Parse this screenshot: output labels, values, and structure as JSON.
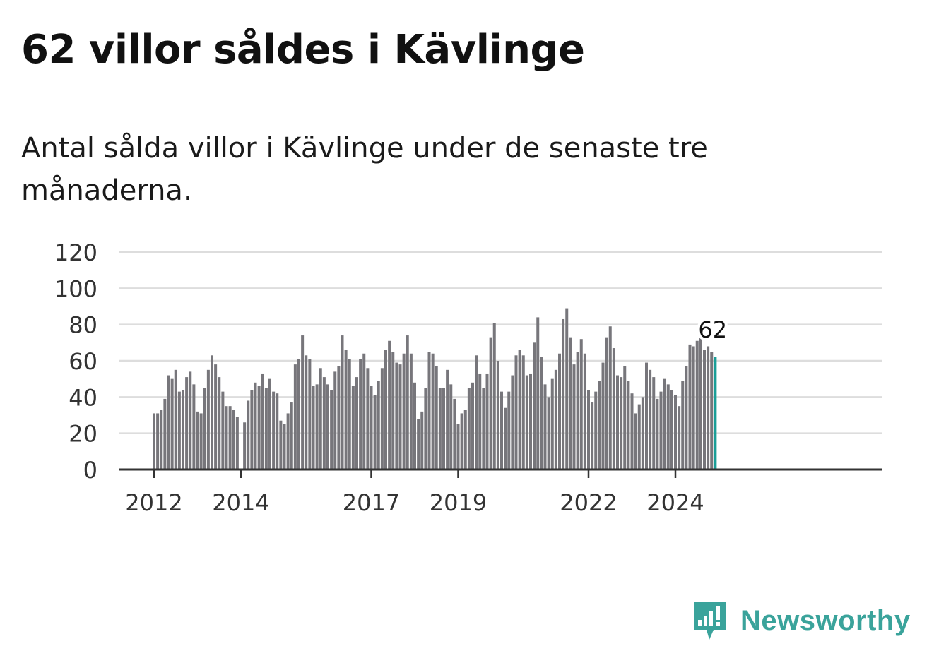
{
  "title": "62 villor såldes i Kävlinge",
  "subtitle": "Antal sålda villor i Kävlinge under de senaste tre månaderna.",
  "brand": "Newsworthy",
  "colors": {
    "bar": "#77767b",
    "highlight": "#1a9e97",
    "brand": "#3aa39b",
    "grid": "#dddddd",
    "axis": "#333333"
  },
  "chart_data": {
    "type": "bar",
    "ylim": [
      0,
      120
    ],
    "yticks": [
      0,
      20,
      40,
      60,
      80,
      100,
      120
    ],
    "xticks": [
      "2012",
      "2014",
      "2017",
      "2019",
      "2022",
      "2024"
    ],
    "x_start": "2012-01",
    "x_end": "2025-06",
    "grid": true,
    "highlight_label": "62",
    "series": [
      {
        "values": [
          31,
          31,
          33,
          39,
          52,
          50,
          55,
          43,
          44,
          51,
          54,
          47,
          32,
          31,
          45,
          55,
          63,
          58,
          51,
          43,
          35,
          35,
          33,
          29,
          0,
          26,
          38,
          44,
          48,
          46,
          53,
          45,
          50,
          43,
          42,
          27,
          25,
          31,
          37,
          58,
          61,
          74,
          63,
          61,
          46,
          47,
          56,
          51,
          47,
          44,
          54,
          57,
          74,
          66,
          61,
          46,
          51,
          61,
          64,
          56,
          46,
          41,
          49,
          56,
          66,
          71,
          65,
          59,
          58,
          64,
          74,
          64,
          48,
          28,
          32,
          45,
          65,
          64,
          57,
          45,
          45,
          55,
          47,
          39,
          25,
          31,
          33,
          45,
          48,
          63,
          53,
          45,
          53,
          73,
          81,
          60,
          43,
          34,
          43,
          52,
          63,
          66,
          63,
          52,
          53,
          70,
          84,
          62,
          47,
          40,
          50,
          55,
          64,
          83,
          89,
          73,
          58,
          65,
          72,
          64,
          44,
          37,
          43,
          49,
          59,
          73,
          79,
          67,
          52,
          51,
          57,
          49,
          42,
          31,
          36,
          40,
          59,
          55,
          51,
          39,
          43,
          50,
          47,
          44,
          41,
          35,
          49,
          57,
          69,
          68,
          71,
          76,
          66,
          68,
          65,
          62
        ]
      }
    ]
  }
}
